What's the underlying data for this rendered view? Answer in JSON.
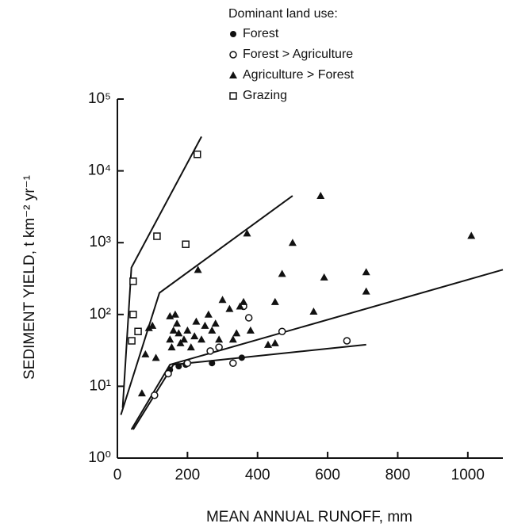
{
  "chart_data": {
    "type": "scatter",
    "legend_title": "Dominant land use:",
    "x_label": "MEAN ANNUAL RUNOFF, mm",
    "y_label": "SEDIMENT YIELD, t km⁻² yr⁻¹",
    "log_y": true,
    "xlim": [
      0,
      1100
    ],
    "ylim": [
      1,
      100000
    ],
    "xticks": [
      0,
      200,
      400,
      600,
      800,
      1000
    ],
    "yticks": [
      {
        "value": 1,
        "label": "10⁰"
      },
      {
        "value": 10,
        "label": "10¹"
      },
      {
        "value": 100,
        "label": "10²"
      },
      {
        "value": 1000,
        "label": "10³"
      },
      {
        "value": 10000,
        "label": "10⁴"
      },
      {
        "value": 100000,
        "label": "10⁵"
      }
    ],
    "legend_position": "top",
    "series": [
      {
        "name": "Forest",
        "marker": "filled-circle",
        "color": "#111111",
        "x": [
          150,
          175,
          195,
          270,
          355
        ],
        "y": [
          17,
          19,
          20,
          21,
          25
        ]
      },
      {
        "name": "Forest > Agriculture",
        "marker": "open-circle",
        "color": "#111111",
        "x": [
          106,
          145,
          200,
          265,
          290,
          330,
          360,
          375,
          470,
          655
        ],
        "y": [
          7.5,
          15,
          21,
          31,
          35,
          21,
          130,
          90,
          58,
          43
        ]
      },
      {
        "name": "Agriculture > Forest",
        "marker": "filled-triangle",
        "color": "#111111",
        "x": [
          70,
          80,
          90,
          110,
          100,
          150,
          160,
          150,
          155,
          165,
          170,
          175,
          180,
          190,
          200,
          210,
          220,
          225,
          230,
          240,
          250,
          260,
          270,
          280,
          290,
          300,
          320,
          330,
          340,
          350,
          360,
          370,
          380,
          430,
          450,
          450,
          470,
          500,
          560,
          580,
          590,
          710,
          710,
          1010
        ],
        "y": [
          8,
          28,
          65,
          25,
          70,
          95,
          60,
          45,
          35,
          100,
          75,
          55,
          40,
          45,
          60,
          35,
          50,
          80,
          420,
          45,
          70,
          100,
          60,
          75,
          45,
          160,
          120,
          45,
          55,
          130,
          150,
          1350,
          60,
          38,
          40,
          150,
          370,
          1000,
          110,
          4500,
          330,
          390,
          210,
          1250
        ]
      },
      {
        "name": "Grazing",
        "marker": "open-square",
        "color": "#111111",
        "x": [
          45,
          45,
          41,
          59,
          113,
          195,
          228
        ],
        "y": [
          290,
          100,
          43,
          58,
          1230,
          950,
          17000
        ]
      }
    ],
    "lines": [
      {
        "x": [
          15,
          40,
          240
        ],
        "y": [
          5,
          450,
          30000
        ]
      },
      {
        "x": [
          10,
          120,
          500
        ],
        "y": [
          4,
          200,
          4500
        ]
      },
      {
        "x": [
          40,
          150,
          1100
        ],
        "y": [
          2.5,
          20,
          420
        ]
      },
      {
        "x": [
          45,
          160,
          710
        ],
        "y": [
          2.5,
          20,
          38
        ]
      }
    ]
  }
}
